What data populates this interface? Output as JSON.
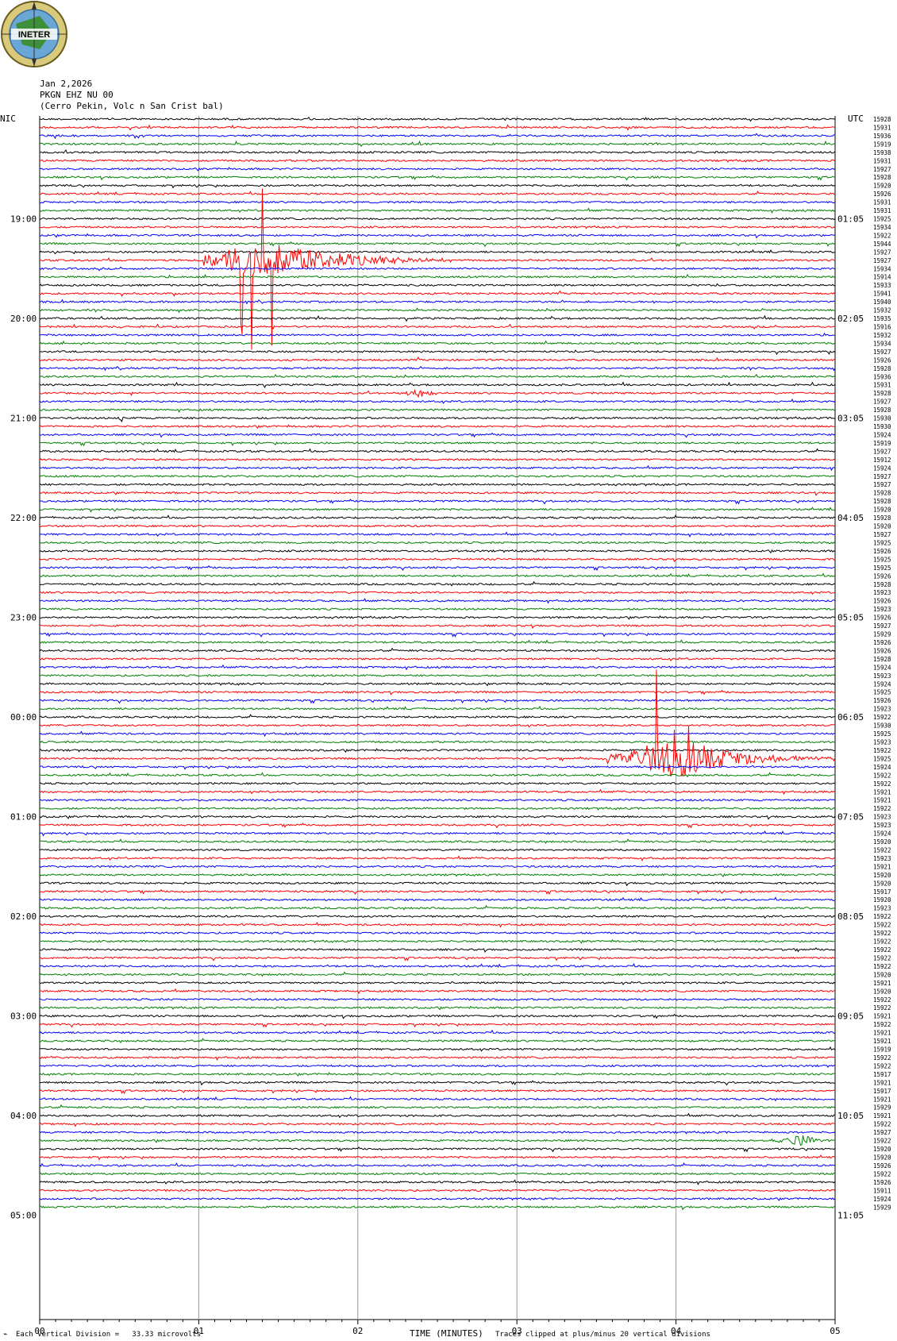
{
  "header": {
    "date": "Jan 2,2026",
    "station": "PKGN EHZ NU 00",
    "location": "(Cerro Pekin, Volc n San Crist bal)",
    "left_zone": "NIC",
    "right_zone": "UTC",
    "logo_text": "INETER"
  },
  "footer": {
    "scale_note": "Each Vertical Division =   33.33 microvolts",
    "xlabel": "TIME (MINUTES)",
    "clip_note": "Traces clipped at plus/minus 20 vertical divisions"
  },
  "colors": {
    "trace_cycle": [
      "#000000",
      "#ff0000",
      "#0000ff",
      "#008000"
    ],
    "grid": "#999999"
  },
  "chart_data": {
    "type": "line",
    "xlabel": "TIME (MINUTES)",
    "xlim": [
      0,
      5
    ],
    "x_ticks": [
      "00",
      "01",
      "02",
      "03",
      "04",
      "05"
    ],
    "trace_count": 132,
    "trace_minutes": 5,
    "left_time_labels": [
      "19:00",
      "20:00",
      "21:00",
      "22:00",
      "23:00",
      "00:00",
      "01:00",
      "02:00",
      "03:00",
      "04:00",
      "05:00"
    ],
    "right_time_labels": [
      "01:05",
      "02:05",
      "03:05",
      "04:05",
      "05:05",
      "06:05",
      "07:05",
      "08:05",
      "09:05",
      "10:05",
      "11:05"
    ],
    "time_label_trace_index": [
      12,
      24,
      36,
      48,
      60,
      72,
      84,
      96,
      108,
      120,
      132
    ],
    "trace_values": [
      "15928",
      "15931",
      "15936",
      "15919",
      "15938",
      "15931",
      "15927",
      "15928",
      "15920",
      "15926",
      "15931",
      "15931",
      "15925",
      "15934",
      "15922",
      "15944",
      "15927",
      "15927",
      "15934",
      "15914",
      "15933",
      "15941",
      "15940",
      "15932",
      "15935",
      "15916",
      "15932",
      "15934",
      "15927",
      "15926",
      "15928",
      "15936",
      "15931",
      "15928",
      "15927",
      "15928",
      "15930",
      "15930",
      "15924",
      "15919",
      "15927",
      "15912",
      "15924",
      "15927",
      "15927",
      "15928",
      "15928",
      "15920",
      "15928",
      "15920",
      "15927",
      "15925",
      "15926",
      "15925",
      "15925",
      "15926",
      "15928",
      "15923",
      "15926",
      "15923",
      "15926",
      "15927",
      "15929",
      "15926",
      "15926",
      "15928",
      "15924",
      "15923",
      "15924",
      "15925",
      "15926",
      "15923",
      "15922",
      "15930",
      "15925",
      "15923",
      "15922",
      "15925",
      "15924",
      "15922",
      "15922",
      "15921",
      "15921",
      "15922",
      "15923",
      "15923",
      "15924",
      "15920",
      "15922",
      "15923",
      "15921",
      "15920",
      "15920",
      "15917",
      "15920",
      "15923",
      "15922",
      "15922",
      "15922",
      "15922",
      "15922",
      "15922",
      "15922",
      "15920",
      "15921",
      "15920",
      "15922",
      "15922",
      "15921",
      "15922",
      "15921",
      "15921",
      "15919",
      "15922",
      "15922",
      "15917",
      "15921",
      "15917",
      "15921",
      "15929",
      "15921",
      "15922",
      "15927",
      "15922",
      "15920",
      "15920",
      "15926",
      "15922",
      "15926",
      "15911",
      "15924",
      "15929"
    ],
    "events": [
      {
        "trace": 17,
        "start_min": 1.02,
        "peak_min": 1.38,
        "end_min": 2.6,
        "amplitude": "clipped",
        "color": "blue"
      },
      {
        "trace": 77,
        "start_min": 3.57,
        "peak_min": 3.98,
        "end_min": 5.0,
        "amplitude": "clipped",
        "color": "red"
      },
      {
        "trace": 36,
        "start_min": 0.5,
        "peak_min": 0.5,
        "end_min": 0.53,
        "amplitude": "small",
        "color": "black"
      },
      {
        "trace": 33,
        "start_min": 2.3,
        "peak_min": 2.4,
        "end_min": 2.55,
        "amplitude": "small",
        "color": "blue"
      },
      {
        "trace": 123,
        "start_min": 4.6,
        "peak_min": 4.8,
        "end_min": 5.0,
        "amplitude": "small",
        "color": "red"
      }
    ]
  }
}
